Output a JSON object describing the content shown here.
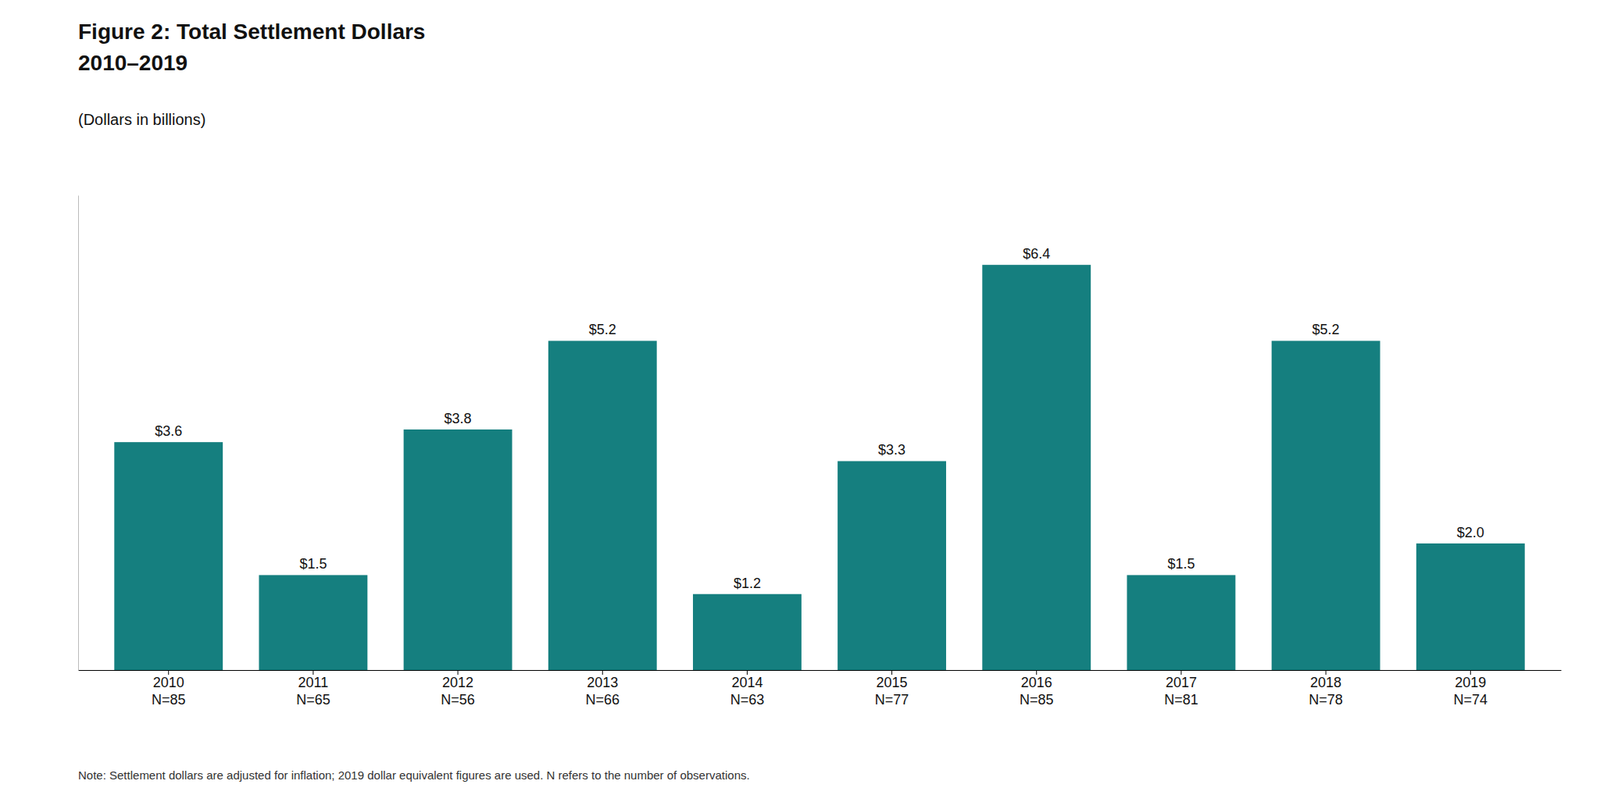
{
  "chart_data": {
    "type": "bar",
    "title": [
      "Figure 2: Total Settlement Dollars",
      "2010–2019"
    ],
    "subtitle": "(Dollars in billions)",
    "annotations": [
      "Note: Settlement dollars are adjusted for inflation; 2019 dollar equivalent figures are used. N refers to the number of observations."
    ],
    "categories": [
      "2010\nN=85",
      "2011\nN=65",
      "2012\nN=56",
      "2013\nN=66",
      "2014\nN=63",
      "2015\nN=77",
      "2016\nN=85",
      "2017\nN=81",
      "2018\nN=78",
      "2019\nN=74"
    ],
    "values": [
      3.6,
      1.5,
      3.8,
      5.2,
      1.2,
      3.3,
      6.4,
      1.5,
      5.2,
      2.0
    ],
    "value_labels": [
      "$3.6",
      "$1.5",
      "$3.8",
      "$5.2",
      "$1.2",
      "$3.3",
      "$6.4",
      "$1.5",
      "$5.2",
      "$2.0"
    ],
    "data_labels": true,
    "color": "#157f7f",
    "ylim": [
      0,
      7.5
    ],
    "tick_labels": "x",
    "grid": false
  }
}
